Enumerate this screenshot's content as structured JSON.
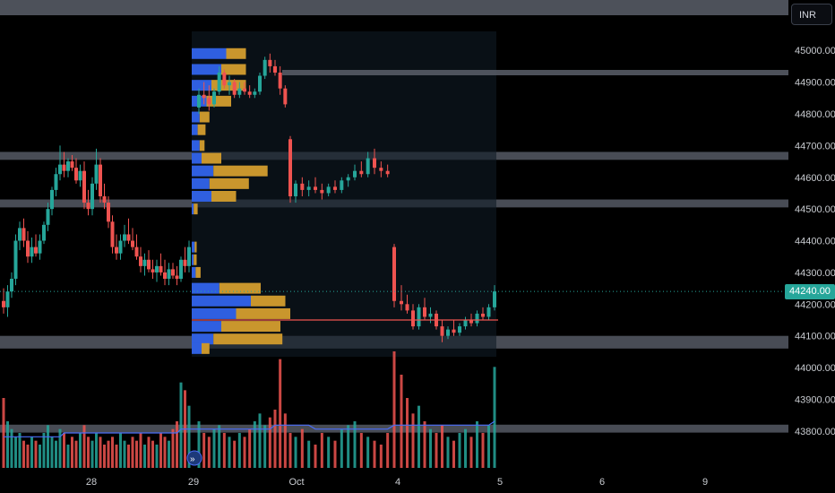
{
  "currency_label": "INR",
  "last_price_label": "44240.00",
  "colors": {
    "up": "#26a69a",
    "down": "#ef5350",
    "profile_blue": "#2f5fe0",
    "profile_gold": "#c9962d",
    "band": "#5a5f6a",
    "poc_line": "#ef5350",
    "ma_line": "#4a6cf7"
  },
  "chart_data": {
    "type": "candlestick",
    "price_axis": {
      "ticks": [
        "45000.00",
        "44900.00",
        "44800.00",
        "44700.00",
        "44600.00",
        "44500.00",
        "44400.00",
        "44300.00",
        "44200.00",
        "44100.00",
        "44000.00",
        "43900.00",
        "43800.00"
      ],
      "range": [
        43760,
        45060
      ]
    },
    "time_axis": {
      "labels": [
        "28",
        "29",
        "Oct",
        "4",
        "5",
        "6",
        "9"
      ]
    },
    "last_price": 44240.0,
    "horizontal_bands": [
      {
        "low": 44655,
        "high": 44680
      },
      {
        "low": 44505,
        "high": 44530
      },
      {
        "low": 44060,
        "high": 44100
      },
      {
        "low": 43795,
        "high": 43820
      }
    ],
    "resistance_line": 44930,
    "poc_level": 44150,
    "candles": [
      {
        "o": 44210,
        "h": 44250,
        "l": 44170,
        "c": 44190
      },
      {
        "o": 44190,
        "h": 44260,
        "l": 44160,
        "c": 44240
      },
      {
        "o": 44240,
        "h": 44300,
        "l": 44220,
        "c": 44280
      },
      {
        "o": 44280,
        "h": 44420,
        "l": 44260,
        "c": 44400
      },
      {
        "o": 44400,
        "h": 44460,
        "l": 44370,
        "c": 44440
      },
      {
        "o": 44440,
        "h": 44470,
        "l": 44380,
        "c": 44400
      },
      {
        "o": 44400,
        "h": 44430,
        "l": 44330,
        "c": 44350
      },
      {
        "o": 44350,
        "h": 44410,
        "l": 44330,
        "c": 44380
      },
      {
        "o": 44380,
        "h": 44420,
        "l": 44350,
        "c": 44360
      },
      {
        "o": 44360,
        "h": 44420,
        "l": 44340,
        "c": 44400
      },
      {
        "o": 44400,
        "h": 44460,
        "l": 44390,
        "c": 44450
      },
      {
        "o": 44450,
        "h": 44520,
        "l": 44430,
        "c": 44500
      },
      {
        "o": 44500,
        "h": 44570,
        "l": 44480,
        "c": 44560
      },
      {
        "o": 44560,
        "h": 44630,
        "l": 44540,
        "c": 44610
      },
      {
        "o": 44610,
        "h": 44700,
        "l": 44590,
        "c": 44640
      },
      {
        "o": 44640,
        "h": 44680,
        "l": 44600,
        "c": 44620
      },
      {
        "o": 44620,
        "h": 44660,
        "l": 44600,
        "c": 44650
      },
      {
        "o": 44650,
        "h": 44670,
        "l": 44620,
        "c": 44630
      },
      {
        "o": 44630,
        "h": 44660,
        "l": 44580,
        "c": 44590
      },
      {
        "o": 44590,
        "h": 44640,
        "l": 44570,
        "c": 44620
      },
      {
        "o": 44620,
        "h": 44650,
        "l": 44500,
        "c": 44520
      },
      {
        "o": 44520,
        "h": 44560,
        "l": 44480,
        "c": 44500
      },
      {
        "o": 44500,
        "h": 44600,
        "l": 44480,
        "c": 44580
      },
      {
        "o": 44580,
        "h": 44690,
        "l": 44560,
        "c": 44640
      },
      {
        "o": 44640,
        "h": 44660,
        "l": 44520,
        "c": 44540
      },
      {
        "o": 44540,
        "h": 44580,
        "l": 44500,
        "c": 44520
      },
      {
        "o": 44520,
        "h": 44540,
        "l": 44440,
        "c": 44460
      },
      {
        "o": 44460,
        "h": 44480,
        "l": 44360,
        "c": 44380
      },
      {
        "o": 44380,
        "h": 44420,
        "l": 44340,
        "c": 44360
      },
      {
        "o": 44360,
        "h": 44420,
        "l": 44340,
        "c": 44400
      },
      {
        "o": 44400,
        "h": 44450,
        "l": 44380,
        "c": 44420
      },
      {
        "o": 44420,
        "h": 44470,
        "l": 44390,
        "c": 44400
      },
      {
        "o": 44400,
        "h": 44440,
        "l": 44370,
        "c": 44380
      },
      {
        "o": 44380,
        "h": 44420,
        "l": 44340,
        "c": 44350
      },
      {
        "o": 44350,
        "h": 44380,
        "l": 44300,
        "c": 44320
      },
      {
        "o": 44320,
        "h": 44360,
        "l": 44290,
        "c": 44340
      },
      {
        "o": 44340,
        "h": 44370,
        "l": 44300,
        "c": 44310
      },
      {
        "o": 44310,
        "h": 44340,
        "l": 44280,
        "c": 44300
      },
      {
        "o": 44300,
        "h": 44340,
        "l": 44270,
        "c": 44320
      },
      {
        "o": 44320,
        "h": 44360,
        "l": 44290,
        "c": 44300
      },
      {
        "o": 44300,
        "h": 44340,
        "l": 44260,
        "c": 44280
      },
      {
        "o": 44280,
        "h": 44330,
        "l": 44260,
        "c": 44310
      },
      {
        "o": 44310,
        "h": 44330,
        "l": 44280,
        "c": 44290
      },
      {
        "o": 44290,
        "h": 44320,
        "l": 44260,
        "c": 44280
      },
      {
        "o": 44280,
        "h": 44350,
        "l": 44270,
        "c": 44340
      },
      {
        "o": 44340,
        "h": 44380,
        "l": 44300,
        "c": 44320
      },
      {
        "o": 44320,
        "h": 44400,
        "l": 44300,
        "c": 44380
      },
      {
        "o": 44820,
        "h": 44880,
        "l": 44800,
        "c": 44860
      },
      {
        "o": 44860,
        "h": 44900,
        "l": 44830,
        "c": 44850
      },
      {
        "o": 44850,
        "h": 44890,
        "l": 44810,
        "c": 44830
      },
      {
        "o": 44830,
        "h": 44880,
        "l": 44820,
        "c": 44870
      },
      {
        "o": 44870,
        "h": 44950,
        "l": 44860,
        "c": 44930
      },
      {
        "o": 44930,
        "h": 44940,
        "l": 44880,
        "c": 44890
      },
      {
        "o": 44890,
        "h": 44920,
        "l": 44860,
        "c": 44900
      },
      {
        "o": 44900,
        "h": 44910,
        "l": 44850,
        "c": 44860
      },
      {
        "o": 44860,
        "h": 44900,
        "l": 44850,
        "c": 44880
      },
      {
        "o": 44880,
        "h": 44900,
        "l": 44860,
        "c": 44870
      },
      {
        "o": 44870,
        "h": 44890,
        "l": 44850,
        "c": 44860
      },
      {
        "o": 44860,
        "h": 44880,
        "l": 44850,
        "c": 44870
      },
      {
        "o": 44870,
        "h": 44930,
        "l": 44860,
        "c": 44920
      },
      {
        "o": 44920,
        "h": 44980,
        "l": 44910,
        "c": 44970
      },
      {
        "o": 44970,
        "h": 44990,
        "l": 44930,
        "c": 44950
      },
      {
        "o": 44950,
        "h": 44970,
        "l": 44920,
        "c": 44930
      },
      {
        "o": 44930,
        "h": 44950,
        "l": 44860,
        "c": 44880
      },
      {
        "o": 44880,
        "h": 44890,
        "l": 44820,
        "c": 44830
      },
      {
        "o": 44720,
        "h": 44730,
        "l": 44520,
        "c": 44540
      },
      {
        "o": 44540,
        "h": 44590,
        "l": 44520,
        "c": 44580
      },
      {
        "o": 44580,
        "h": 44600,
        "l": 44540,
        "c": 44560
      },
      {
        "o": 44560,
        "h": 44590,
        "l": 44540,
        "c": 44570
      },
      {
        "o": 44570,
        "h": 44600,
        "l": 44550,
        "c": 44560
      },
      {
        "o": 44560,
        "h": 44580,
        "l": 44530,
        "c": 44550
      },
      {
        "o": 44550,
        "h": 44580,
        "l": 44540,
        "c": 44570
      },
      {
        "o": 44570,
        "h": 44590,
        "l": 44550,
        "c": 44560
      },
      {
        "o": 44560,
        "h": 44600,
        "l": 44550,
        "c": 44590
      },
      {
        "o": 44590,
        "h": 44610,
        "l": 44570,
        "c": 44600
      },
      {
        "o": 44600,
        "h": 44640,
        "l": 44590,
        "c": 44620
      },
      {
        "o": 44620,
        "h": 44650,
        "l": 44600,
        "c": 44610
      },
      {
        "o": 44610,
        "h": 44680,
        "l": 44600,
        "c": 44660
      },
      {
        "o": 44660,
        "h": 44690,
        "l": 44610,
        "c": 44630
      },
      {
        "o": 44630,
        "h": 44650,
        "l": 44600,
        "c": 44620
      },
      {
        "o": 44620,
        "h": 44640,
        "l": 44600,
        "c": 44610
      },
      {
        "o": 44380,
        "h": 44390,
        "l": 44190,
        "c": 44210
      },
      {
        "o": 44210,
        "h": 44260,
        "l": 44180,
        "c": 44200
      },
      {
        "o": 44200,
        "h": 44230,
        "l": 44170,
        "c": 44180
      },
      {
        "o": 44180,
        "h": 44200,
        "l": 44120,
        "c": 44130
      },
      {
        "o": 44130,
        "h": 44200,
        "l": 44120,
        "c": 44190
      },
      {
        "o": 44190,
        "h": 44220,
        "l": 44150,
        "c": 44160
      },
      {
        "o": 44160,
        "h": 44190,
        "l": 44140,
        "c": 44170
      },
      {
        "o": 44170,
        "h": 44180,
        "l": 44120,
        "c": 44130
      },
      {
        "o": 44130,
        "h": 44150,
        "l": 44080,
        "c": 44100
      },
      {
        "o": 44100,
        "h": 44130,
        "l": 44090,
        "c": 44120
      },
      {
        "o": 44120,
        "h": 44150,
        "l": 44100,
        "c": 44110
      },
      {
        "o": 44110,
        "h": 44140,
        "l": 44100,
        "c": 44130
      },
      {
        "o": 44130,
        "h": 44160,
        "l": 44120,
        "c": 44150
      },
      {
        "o": 44150,
        "h": 44170,
        "l": 44130,
        "c": 44140
      },
      {
        "o": 44140,
        "h": 44180,
        "l": 44130,
        "c": 44170
      },
      {
        "o": 44170,
        "h": 44190,
        "l": 44150,
        "c": 44160
      },
      {
        "o": 44160,
        "h": 44200,
        "l": 44150,
        "c": 44190
      },
      {
        "o": 44190,
        "h": 44260,
        "l": 44180,
        "c": 44240
      }
    ],
    "volumes": [
      18,
      12,
      10,
      8,
      9,
      7,
      6,
      8,
      7,
      6,
      9,
      11,
      8,
      7,
      10,
      9,
      6,
      8,
      7,
      9,
      11,
      8,
      7,
      9,
      8,
      6,
      7,
      8,
      6,
      9,
      7,
      6,
      8,
      7,
      9,
      6,
      8,
      7,
      6,
      9,
      8,
      7,
      10,
      12,
      22,
      20,
      16,
      12,
      9,
      8,
      10,
      11,
      9,
      8,
      7,
      9,
      8,
      10,
      12,
      14,
      11,
      13,
      15,
      28,
      14,
      9,
      8,
      10,
      7,
      6,
      9,
      8,
      7,
      10,
      11,
      12,
      9,
      8,
      7,
      6,
      9,
      30,
      24,
      18,
      14,
      16,
      12,
      10,
      9,
      11,
      8,
      7,
      9,
      10,
      8,
      12,
      9,
      11,
      26
    ],
    "ma": [
      8,
      8,
      8,
      8,
      8,
      8,
      8,
      8,
      8,
      8,
      8,
      8,
      8,
      8,
      8,
      9,
      9,
      9,
      9,
      9,
      9,
      9,
      9,
      9,
      9,
      9,
      9,
      9,
      9,
      9,
      9,
      9,
      9,
      9,
      9,
      9,
      9,
      9,
      9,
      9,
      9,
      9,
      9,
      9,
      10,
      10,
      10,
      10,
      10,
      10,
      10,
      10,
      10,
      10,
      10,
      10,
      10,
      10,
      10,
      10,
      10,
      10,
      11,
      11,
      11,
      11,
      11,
      11,
      11,
      10,
      10,
      10,
      10,
      10,
      10,
      10,
      10,
      10,
      10,
      10,
      10,
      11,
      11,
      11,
      11,
      11,
      11,
      11,
      11,
      11,
      11,
      11,
      11,
      11,
      11,
      11,
      11,
      11,
      12
    ],
    "volume_profile": [
      {
        "level": 44990,
        "buy": 0.35,
        "sell": 0.2
      },
      {
        "level": 44940,
        "buy": 0.3,
        "sell": 0.25
      },
      {
        "level": 44890,
        "buy": 0.2,
        "sell": 0.35
      },
      {
        "level": 44840,
        "buy": 0.15,
        "sell": 0.25
      },
      {
        "level": 44790,
        "buy": 0.08,
        "sell": 0.1
      },
      {
        "level": 44750,
        "buy": 0.06,
        "sell": 0.08
      },
      {
        "level": 44700,
        "buy": 0.08,
        "sell": 0.05
      },
      {
        "level": 44660,
        "buy": 0.1,
        "sell": 0.2
      },
      {
        "level": 44620,
        "buy": 0.22,
        "sell": 0.55
      },
      {
        "level": 44580,
        "buy": 0.18,
        "sell": 0.4
      },
      {
        "level": 44540,
        "buy": 0.2,
        "sell": 0.25
      },
      {
        "level": 44500,
        "buy": 0.02,
        "sell": 0.04
      },
      {
        "level": 44380,
        "buy": 0.03,
        "sell": 0.02
      },
      {
        "level": 44340,
        "buy": 0.02,
        "sell": 0.03
      },
      {
        "level": 44300,
        "buy": 0.04,
        "sell": 0.05
      },
      {
        "level": 44250,
        "buy": 0.28,
        "sell": 0.42
      },
      {
        "level": 44210,
        "buy": 0.6,
        "sell": 0.35
      },
      {
        "level": 44170,
        "buy": 0.45,
        "sell": 0.55
      },
      {
        "level": 44130,
        "buy": 0.3,
        "sell": 0.6
      },
      {
        "level": 44090,
        "buy": 0.22,
        "sell": 0.7
      },
      {
        "level": 44060,
        "buy": 0.1,
        "sell": 0.08
      }
    ]
  }
}
